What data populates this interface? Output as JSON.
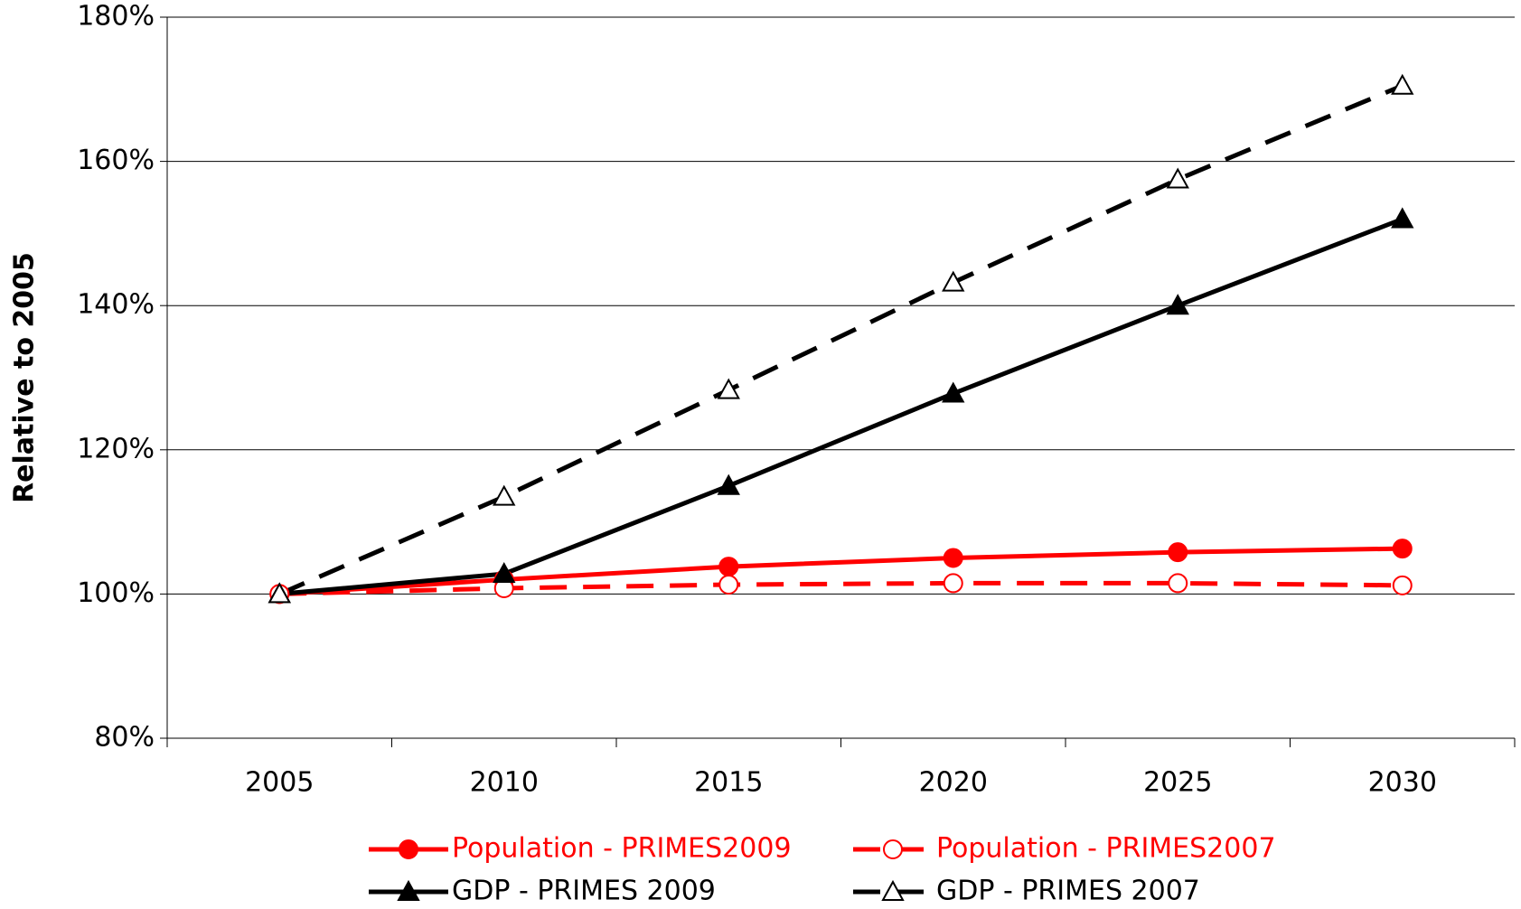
{
  "chart_data": {
    "type": "line",
    "y_label": "Relative to 2005",
    "categories": [
      "2005",
      "2010",
      "2015",
      "2020",
      "2025",
      "2030"
    ],
    "series": [
      {
        "name": "Population - PRIMES2009",
        "color": "#ff0000",
        "dash": false,
        "marker": "circle",
        "filled": true,
        "values": [
          100,
          102,
          103.8,
          105,
          105.8,
          106.3
        ]
      },
      {
        "name": "Population - PRIMES2007",
        "color": "#ff0000",
        "dash": true,
        "marker": "circle",
        "filled": false,
        "values": [
          100,
          100.8,
          101.3,
          101.5,
          101.5,
          101.2
        ]
      },
      {
        "name": "GDP - PRIMES 2009",
        "color": "#000000",
        "dash": false,
        "marker": "triangle",
        "filled": true,
        "values": [
          100,
          102.8,
          115,
          127.8,
          140,
          152
        ]
      },
      {
        "name": "GDP - PRIMES 2007",
        "color": "#000000",
        "dash": true,
        "marker": "triangle",
        "filled": false,
        "values": [
          100,
          113.5,
          128.3,
          143.2,
          157.5,
          170.5
        ]
      }
    ],
    "ylim": [
      80,
      180
    ],
    "yticks": [
      {
        "value": 80,
        "label": "80%"
      },
      {
        "value": 100,
        "label": "100%"
      },
      {
        "value": 120,
        "label": "120%"
      },
      {
        "value": 140,
        "label": "140%"
      },
      {
        "value": 160,
        "label": "160%"
      },
      {
        "value": 180,
        "label": "180%"
      }
    ],
    "grid": true,
    "legend": "bottom"
  }
}
